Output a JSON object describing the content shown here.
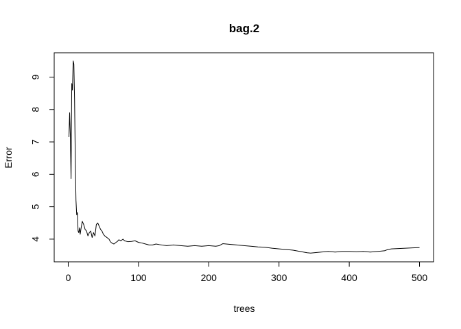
{
  "chart_data": {
    "type": "line",
    "title": "bag.2",
    "xlabel": "trees",
    "ylabel": "Error",
    "xlim": [
      -20,
      520
    ],
    "ylim": [
      3.3,
      9.75
    ],
    "x_ticks": [
      0,
      100,
      200,
      300,
      400,
      500
    ],
    "y_ticks": [
      4,
      5,
      6,
      7,
      8,
      9
    ],
    "grid": false,
    "legend": "none",
    "line_color": "#000000",
    "series": [
      {
        "x": [
          1,
          2,
          3,
          4,
          5,
          6,
          7,
          8,
          9,
          10,
          11,
          12,
          13,
          14,
          15,
          16,
          17,
          18,
          20,
          22,
          24,
          26,
          28,
          30,
          32,
          34,
          36,
          38,
          40,
          42,
          44,
          46,
          48,
          50,
          52,
          55,
          58,
          60,
          62,
          65,
          68,
          70,
          72,
          75,
          78,
          80,
          85,
          90,
          95,
          100,
          105,
          110,
          115,
          120,
          125,
          130,
          140,
          150,
          160,
          170,
          180,
          190,
          200,
          210,
          215,
          220,
          230,
          240,
          250,
          260,
          270,
          280,
          290,
          300,
          310,
          320,
          330,
          340,
          345,
          350,
          360,
          370,
          380,
          390,
          400,
          410,
          420,
          430,
          440,
          450,
          455,
          460,
          470,
          480,
          490,
          500
        ],
        "y": [
          7.15,
          7.9,
          7.2,
          5.87,
          8.8,
          8.6,
          9.5,
          9.4,
          8.3,
          6.5,
          5.2,
          4.75,
          4.82,
          4.25,
          4.2,
          4.35,
          4.15,
          4.3,
          4.55,
          4.45,
          4.3,
          4.25,
          4.1,
          4.2,
          4.25,
          4.05,
          4.2,
          4.1,
          4.45,
          4.5,
          4.4,
          4.3,
          4.25,
          4.15,
          4.1,
          4.05,
          4.0,
          3.92,
          3.88,
          3.85,
          3.9,
          3.93,
          3.98,
          3.95,
          4.0,
          3.95,
          3.92,
          3.93,
          3.95,
          3.9,
          3.88,
          3.85,
          3.82,
          3.82,
          3.85,
          3.83,
          3.8,
          3.82,
          3.8,
          3.78,
          3.8,
          3.78,
          3.8,
          3.78,
          3.8,
          3.86,
          3.84,
          3.82,
          3.8,
          3.78,
          3.76,
          3.75,
          3.72,
          3.7,
          3.68,
          3.66,
          3.62,
          3.58,
          3.57,
          3.58,
          3.6,
          3.62,
          3.6,
          3.62,
          3.62,
          3.61,
          3.62,
          3.6,
          3.62,
          3.64,
          3.68,
          3.7,
          3.71,
          3.72,
          3.73,
          3.74
        ]
      }
    ]
  }
}
